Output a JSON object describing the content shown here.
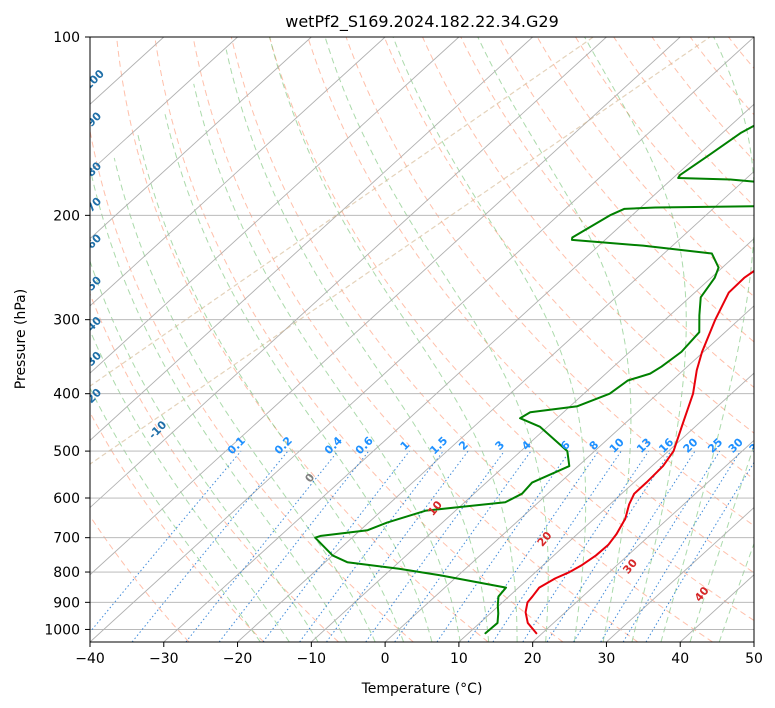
{
  "chart_data": {
    "type": "line",
    "title": "wetPf2_S169.2024.182.22.34.G29",
    "xlabel": "Temperature (°C)",
    "ylabel": "Pressure (hPa)",
    "xlim": [
      -40,
      50
    ],
    "ylim": [
      1050,
      100
    ],
    "y_scale": "log",
    "grid": true,
    "x_ticks": [
      -40,
      -30,
      -20,
      -10,
      0,
      10,
      20,
      30,
      40,
      50
    ],
    "y_ticks": [
      100,
      200,
      300,
      400,
      500,
      600,
      700,
      800,
      900,
      1000
    ],
    "x_tick_labels": [
      "−40",
      "−30",
      "−20",
      "−10",
      "0",
      "10",
      "20",
      "30",
      "40",
      "50"
    ],
    "y_tick_labels": [
      "100",
      "200",
      "300",
      "400",
      "500",
      "600",
      "700",
      "800",
      "900",
      "1000"
    ],
    "series": [
      {
        "color": "#e8000b",
        "points": [
          [
            19.2,
            1015
          ],
          [
            16.5,
            975
          ],
          [
            14.6,
            935
          ],
          [
            13.4,
            900
          ],
          [
            13.2,
            880
          ],
          [
            12.8,
            850
          ],
          [
            13.6,
            820
          ],
          [
            14.6,
            800
          ],
          [
            15.2,
            780
          ],
          [
            15.7,
            750
          ],
          [
            15.8,
            720
          ],
          [
            15.3,
            690
          ],
          [
            14.2,
            650
          ],
          [
            12.6,
            615
          ],
          [
            11.7,
            590
          ],
          [
            11.7,
            565
          ],
          [
            11.5,
            530
          ],
          [
            10.7,
            500
          ],
          [
            7.9,
            450
          ],
          [
            4.8,
            400
          ],
          [
            1.8,
            365
          ],
          [
            -0.2,
            340
          ],
          [
            -3.2,
            300
          ],
          [
            -5.4,
            270
          ],
          [
            -5.5,
            255
          ],
          [
            -4.8,
            240
          ],
          [
            -3.2,
            230
          ],
          [
            -0.2,
            220
          ],
          [
            3.6,
            205
          ],
          [
            7.3,
            190
          ],
          [
            10.4,
            180
          ],
          [
            13.8,
            170
          ],
          [
            16.8,
            162
          ],
          [
            17.8,
            150
          ],
          [
            18.1,
            140
          ],
          [
            17.9,
            130
          ],
          [
            18.5,
            120
          ],
          [
            19.4,
            110
          ],
          [
            20.6,
            100
          ]
        ]
      },
      {
        "color": "#008000",
        "points": [
          [
            12.3,
            1015
          ],
          [
            12.4,
            975
          ],
          [
            11.1,
            940
          ],
          [
            9.8,
            910
          ],
          [
            8.6,
            880
          ],
          [
            8.3,
            850
          ],
          [
            -2.5,
            810
          ],
          [
            -9.0,
            790
          ],
          [
            -17.0,
            770
          ],
          [
            -20.0,
            750
          ],
          [
            -25.0,
            700
          ],
          [
            -24.5,
            695
          ],
          [
            -19.0,
            680
          ],
          [
            -17.5,
            660
          ],
          [
            -14.0,
            630
          ],
          [
            -4.5,
            610
          ],
          [
            -3.5,
            590
          ],
          [
            -3.8,
            565
          ],
          [
            -1.2,
            530
          ],
          [
            -3.7,
            500
          ],
          [
            -11.0,
            455
          ],
          [
            -15.0,
            440
          ],
          [
            -14.5,
            430
          ],
          [
            -9.0,
            420
          ],
          [
            -6.5,
            400
          ],
          [
            -6.0,
            380
          ],
          [
            -4.0,
            370
          ],
          [
            -3.5,
            360
          ],
          [
            -3.0,
            340
          ],
          [
            -3.5,
            315
          ],
          [
            -6.0,
            295
          ],
          [
            -8.5,
            275
          ],
          [
            -9.5,
            255
          ],
          [
            -10.5,
            245
          ],
          [
            -13.5,
            232
          ],
          [
            -24.0,
            225
          ],
          [
            -34.5,
            220
          ],
          [
            -34.8,
            218
          ],
          [
            -33.0,
            200
          ],
          [
            -32.0,
            195
          ],
          [
            -28.0,
            194
          ],
          [
            -14.5,
            193
          ],
          [
            -9.5,
            190
          ],
          [
            -9.0,
            183
          ],
          [
            -12.5,
            178
          ],
          [
            -22.0,
            174
          ],
          [
            -29.3,
            173
          ],
          [
            -29.5,
            171
          ],
          [
            -28.5,
            158
          ],
          [
            -27.5,
            145
          ],
          [
            -26.0,
            137
          ],
          [
            -25.7,
            133
          ],
          [
            -15.5,
            130
          ],
          [
            -11.0,
            127
          ],
          [
            -9.2,
            122
          ],
          [
            -9.4,
            119
          ],
          [
            -14.0,
            115
          ],
          [
            -20.5,
            111
          ],
          [
            -19.5,
            108
          ],
          [
            -10.0,
            104
          ],
          [
            -1.6,
            100
          ]
        ]
      }
    ],
    "mixing_ratio_labels": [
      "0.1",
      "0.2",
      "0.4",
      "0.6",
      "1",
      "1.5",
      "2",
      "3",
      "4",
      "6",
      "8",
      "10",
      "13",
      "16",
      "20",
      "25",
      "30",
      "36"
    ],
    "mixing_ratio_values": [
      0.1,
      0.2,
      0.4,
      0.6,
      1,
      1.5,
      2,
      3,
      4,
      6,
      8,
      10,
      13,
      16,
      20,
      25,
      30,
      36
    ],
    "dry_adiabat_labels": [
      {
        "text": "-100",
        "value": -100
      },
      {
        "text": "-90",
        "value": -90
      },
      {
        "text": "-80",
        "value": -80
      },
      {
        "text": "-70",
        "value": -70
      },
      {
        "text": "-60",
        "value": -60
      },
      {
        "text": "-50",
        "value": -50
      },
      {
        "text": "-40",
        "value": -40
      },
      {
        "text": "-30",
        "value": -30
      },
      {
        "text": "-20",
        "value": -20
      },
      {
        "text": "-10",
        "value": -10
      }
    ],
    "moist_adiabat_labels": [
      {
        "text": "0",
        "value": 0,
        "color": "#808080"
      },
      {
        "text": "10",
        "value": 10,
        "color": "#d62728"
      },
      {
        "text": "20",
        "value": 20,
        "color": "#d62728"
      },
      {
        "text": "30",
        "value": 30,
        "color": "#d62728"
      },
      {
        "text": "40",
        "value": 40,
        "color": "#d62728"
      }
    ],
    "colors": {
      "temperature": "#e8000b",
      "dewpoint": "#008000",
      "isotherm_grid": "#b0b0b0",
      "dry_adiabat": "#ff8c66",
      "moist_adiabat": "#66bb66",
      "mixing_ratio": "#1f77d4",
      "mixing_label": "#1e90ff",
      "dry_label": "#1f6fa8",
      "alt_curve": "#d2b48c"
    }
  }
}
